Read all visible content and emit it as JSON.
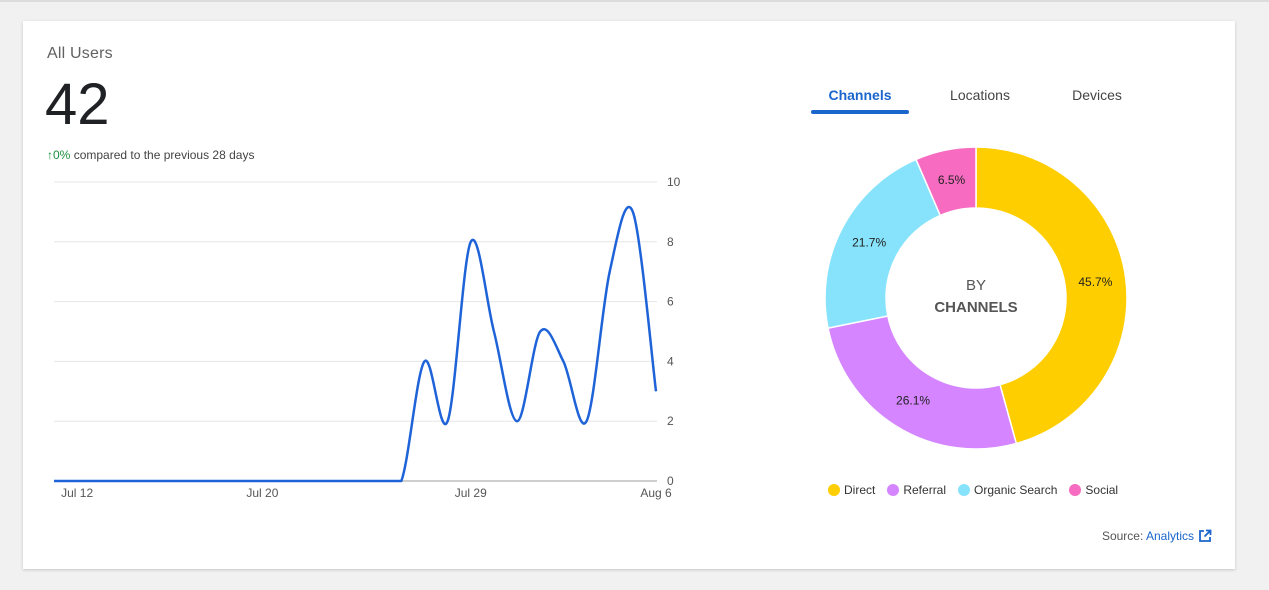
{
  "card": {
    "title": "All Users",
    "total": "42",
    "change_percent": "0%",
    "change_text": "compared to the previous 28 days"
  },
  "colors": {
    "line": "#1f63d8",
    "accent": "#1a66cc",
    "positive": "#1e8e3e"
  },
  "chart_data": [
    {
      "type": "line",
      "x_tick_labels": [
        "Jul 12",
        "Jul 20",
        "Jul 29",
        "Aug 6"
      ],
      "x": [
        "Jul 11",
        "Jul 12",
        "Jul 13",
        "Jul 14",
        "Jul 15",
        "Jul 16",
        "Jul 17",
        "Jul 18",
        "Jul 19",
        "Jul 20",
        "Jul 21",
        "Jul 22",
        "Jul 23",
        "Jul 24",
        "Jul 25",
        "Jul 26",
        "Jul 27",
        "Jul 28",
        "Jul 29",
        "Jul 30",
        "Jul 31",
        "Aug 1",
        "Aug 2",
        "Aug 3",
        "Aug 4",
        "Aug 5",
        "Aug 6"
      ],
      "series": [
        {
          "values": [
            0,
            0,
            0,
            0,
            0,
            0,
            0,
            0,
            0,
            0,
            0,
            0,
            0,
            0,
            0,
            0,
            4,
            2,
            8,
            5,
            2,
            5,
            4,
            2,
            7,
            9,
            3
          ]
        }
      ],
      "y_ticks": [
        "0",
        "2",
        "4",
        "6",
        "8",
        "10"
      ],
      "ylim": [
        0,
        10
      ],
      "grid": true
    },
    {
      "type": "pie",
      "center_label_top": "BY",
      "center_label_bottom": "CHANNELS",
      "slices": [
        {
          "label": "Direct",
          "value": 45.7,
          "display": "45.7%",
          "color": "#ffce00"
        },
        {
          "label": "Referral",
          "value": 26.1,
          "display": "26.1%",
          "color": "#d485ff"
        },
        {
          "label": "Organic Search",
          "value": 21.7,
          "display": "21.7%",
          "color": "#87e3fb"
        },
        {
          "label": "Social",
          "value": 6.5,
          "display": "6.5%",
          "color": "#f76bc0"
        }
      ]
    }
  ],
  "tabs": [
    {
      "label": "Channels",
      "active": true
    },
    {
      "label": "Locations",
      "active": false
    },
    {
      "label": "Devices",
      "active": false
    }
  ],
  "source": {
    "prefix": "Source:",
    "link_label": "Analytics",
    "icon": "external-link-icon"
  }
}
